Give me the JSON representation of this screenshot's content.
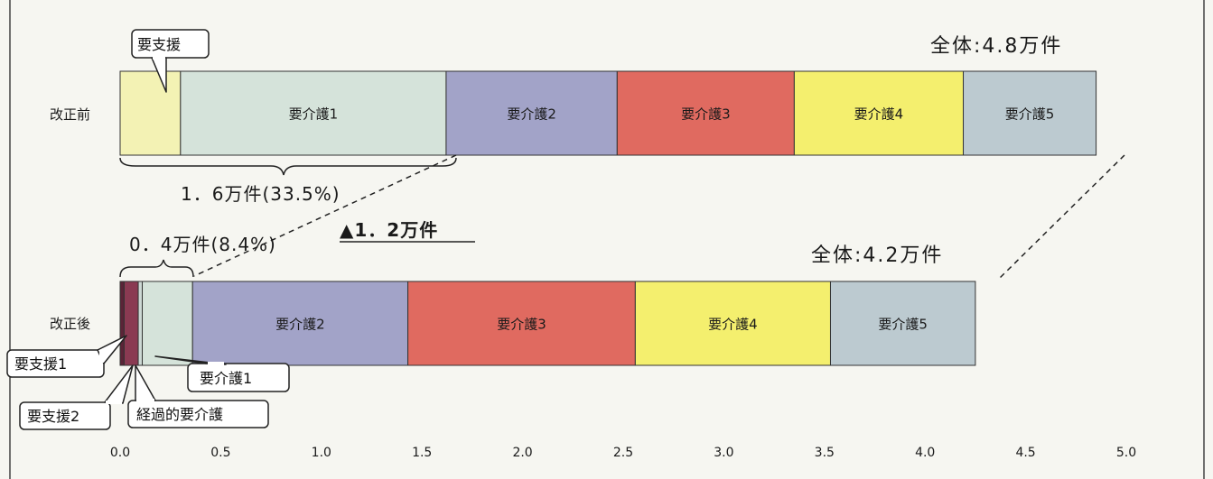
{
  "chart_data": {
    "type": "bar",
    "orientation": "horizontal",
    "stacked": true,
    "xlim": [
      0,
      5.0
    ],
    "x_ticks": [
      "0.0",
      "0.5",
      "1.0",
      "1.5",
      "2.0",
      "2.5",
      "3.0",
      "3.5",
      "4.0",
      "4.5",
      "5.0"
    ],
    "categories": [
      "改正前",
      "改正後"
    ],
    "bars": [
      {
        "category": "改正前",
        "total_label": "全体:4.8万件",
        "segments": [
          {
            "name": "要支援",
            "value": 0.3,
            "color": "#f3f2b4",
            "label": "",
            "callout": "要支援"
          },
          {
            "name": "要介護1",
            "value": 1.32,
            "color": "#d5e3da",
            "label": "要介護1"
          },
          {
            "name": "要介護2",
            "value": 0.85,
            "color": "#a2a3c8",
            "label": "要介護2"
          },
          {
            "name": "要介護3",
            "value": 0.88,
            "color": "#e06a60",
            "label": "要介護3"
          },
          {
            "name": "要介護4",
            "value": 0.84,
            "color": "#f4ef6e",
            "label": "要介護4"
          },
          {
            "name": "要介護5",
            "value": 0.66,
            "color": "#bccad0",
            "label": "要介護5"
          }
        ]
      },
      {
        "category": "改正後",
        "total_label": "全体:4.2万件",
        "segments": [
          {
            "name": "要支援1",
            "value": 0.02,
            "color": "#5b2437",
            "label": "",
            "callout": "要支援1"
          },
          {
            "name": "要支援2",
            "value": 0.07,
            "color": "#8a3a52",
            "label": "",
            "callout": "要支援2"
          },
          {
            "name": "経過的要介護",
            "value": 0.02,
            "color": "#ccd8d4",
            "label": "",
            "callout": "経過的要介護"
          },
          {
            "name": "要介護1",
            "value": 0.25,
            "color": "#d5e3da",
            "label": "",
            "callout": "要介護1"
          },
          {
            "name": "要介護2",
            "value": 1.07,
            "color": "#a2a3c8",
            "label": "要介護2"
          },
          {
            "name": "要介護3",
            "value": 1.13,
            "color": "#e06a60",
            "label": "要介護3"
          },
          {
            "name": "要介護4",
            "value": 0.97,
            "color": "#f4ef6e",
            "label": "要介護4"
          },
          {
            "name": "要介護5",
            "value": 0.72,
            "color": "#bccad0",
            "label": "要介護5"
          }
        ]
      }
    ],
    "annotations": {
      "before_bracket": "1．6万件(33.5%)",
      "after_bracket": "0．4万件(8.4%)",
      "decrease": "▲1．2万件"
    }
  }
}
